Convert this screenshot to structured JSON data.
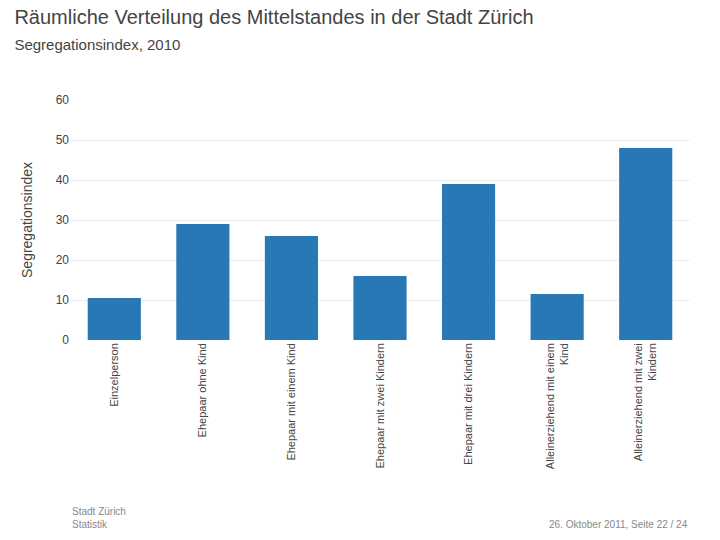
{
  "chart_data": {
    "type": "bar",
    "title": "Räumliche Verteilung des Mittelstandes in der Stadt Zürich",
    "subtitle": "Segregationsindex, 2010",
    "ylabel": "Segregationsindex",
    "categories": [
      "Einzelperson",
      "Ehepaar ohne Kind",
      "Ehepaar mit einem Kind",
      "Ehepaar mit zwei Kindern",
      "Ehepaar mit drei Kindern",
      "Alleinerziehend mit einem\nKind",
      "Alleinerziehend mit zwei\nKindern"
    ],
    "values": [
      10.5,
      29.0,
      26.0,
      16.0,
      39.0,
      11.5,
      48.0
    ],
    "color": "#2878b5",
    "ylim": [
      0,
      60
    ],
    "yticks": [
      0,
      10,
      20,
      30,
      40,
      50,
      60
    ],
    "grid": true,
    "annotations": [
      "Stadt Zürich\nStatistik",
      "26. Oktober 2011, Seite 22 / 24"
    ]
  }
}
